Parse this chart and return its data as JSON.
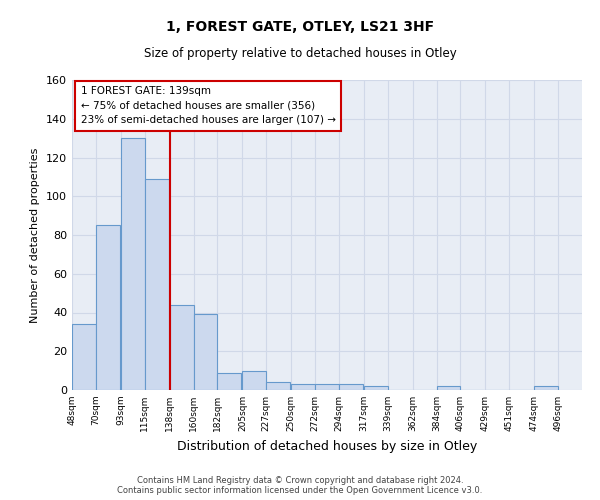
{
  "title": "1, FOREST GATE, OTLEY, LS21 3HF",
  "subtitle": "Size of property relative to detached houses in Otley",
  "xlabel": "Distribution of detached houses by size in Otley",
  "ylabel": "Number of detached properties",
  "bar_left_edges": [
    48,
    70,
    93,
    115,
    138,
    160,
    182,
    205,
    227,
    250,
    272,
    294,
    317,
    339,
    362,
    384,
    406,
    429,
    451,
    474
  ],
  "bar_heights": [
    34,
    85,
    130,
    109,
    44,
    39,
    9,
    10,
    4,
    3,
    3,
    3,
    2,
    0,
    0,
    2,
    0,
    0,
    0,
    2
  ],
  "bin_width": 22,
  "bar_facecolor": "#ccd9ee",
  "bar_edgecolor": "#6699cc",
  "property_line_x": 138,
  "property_line_color": "#cc0000",
  "annotation_text": "1 FOREST GATE: 139sqm\n← 75% of detached houses are smaller (356)\n23% of semi-detached houses are larger (107) →",
  "annotation_box_edgecolor": "#cc0000",
  "annotation_box_facecolor": "#ffffff",
  "annotation_fontsize": 7.5,
  "xlim_left": 48,
  "xlim_right": 518,
  "ylim_top": 160,
  "ylim_bottom": 0,
  "yticks": [
    0,
    20,
    40,
    60,
    80,
    100,
    120,
    140,
    160
  ],
  "tick_labels": [
    "48sqm",
    "70sqm",
    "93sqm",
    "115sqm",
    "138sqm",
    "160sqm",
    "182sqm",
    "205sqm",
    "227sqm",
    "250sqm",
    "272sqm",
    "294sqm",
    "317sqm",
    "339sqm",
    "362sqm",
    "384sqm",
    "406sqm",
    "429sqm",
    "451sqm",
    "474sqm",
    "496sqm"
  ],
  "tick_positions": [
    48,
    70,
    93,
    115,
    138,
    160,
    182,
    205,
    227,
    250,
    272,
    294,
    317,
    339,
    362,
    384,
    406,
    429,
    451,
    474,
    496
  ],
  "footer_line1": "Contains HM Land Registry data © Crown copyright and database right 2024.",
  "footer_line2": "Contains public sector information licensed under the Open Government Licence v3.0.",
  "grid_color": "#d0d8e8",
  "bg_color": "#e8edf5"
}
